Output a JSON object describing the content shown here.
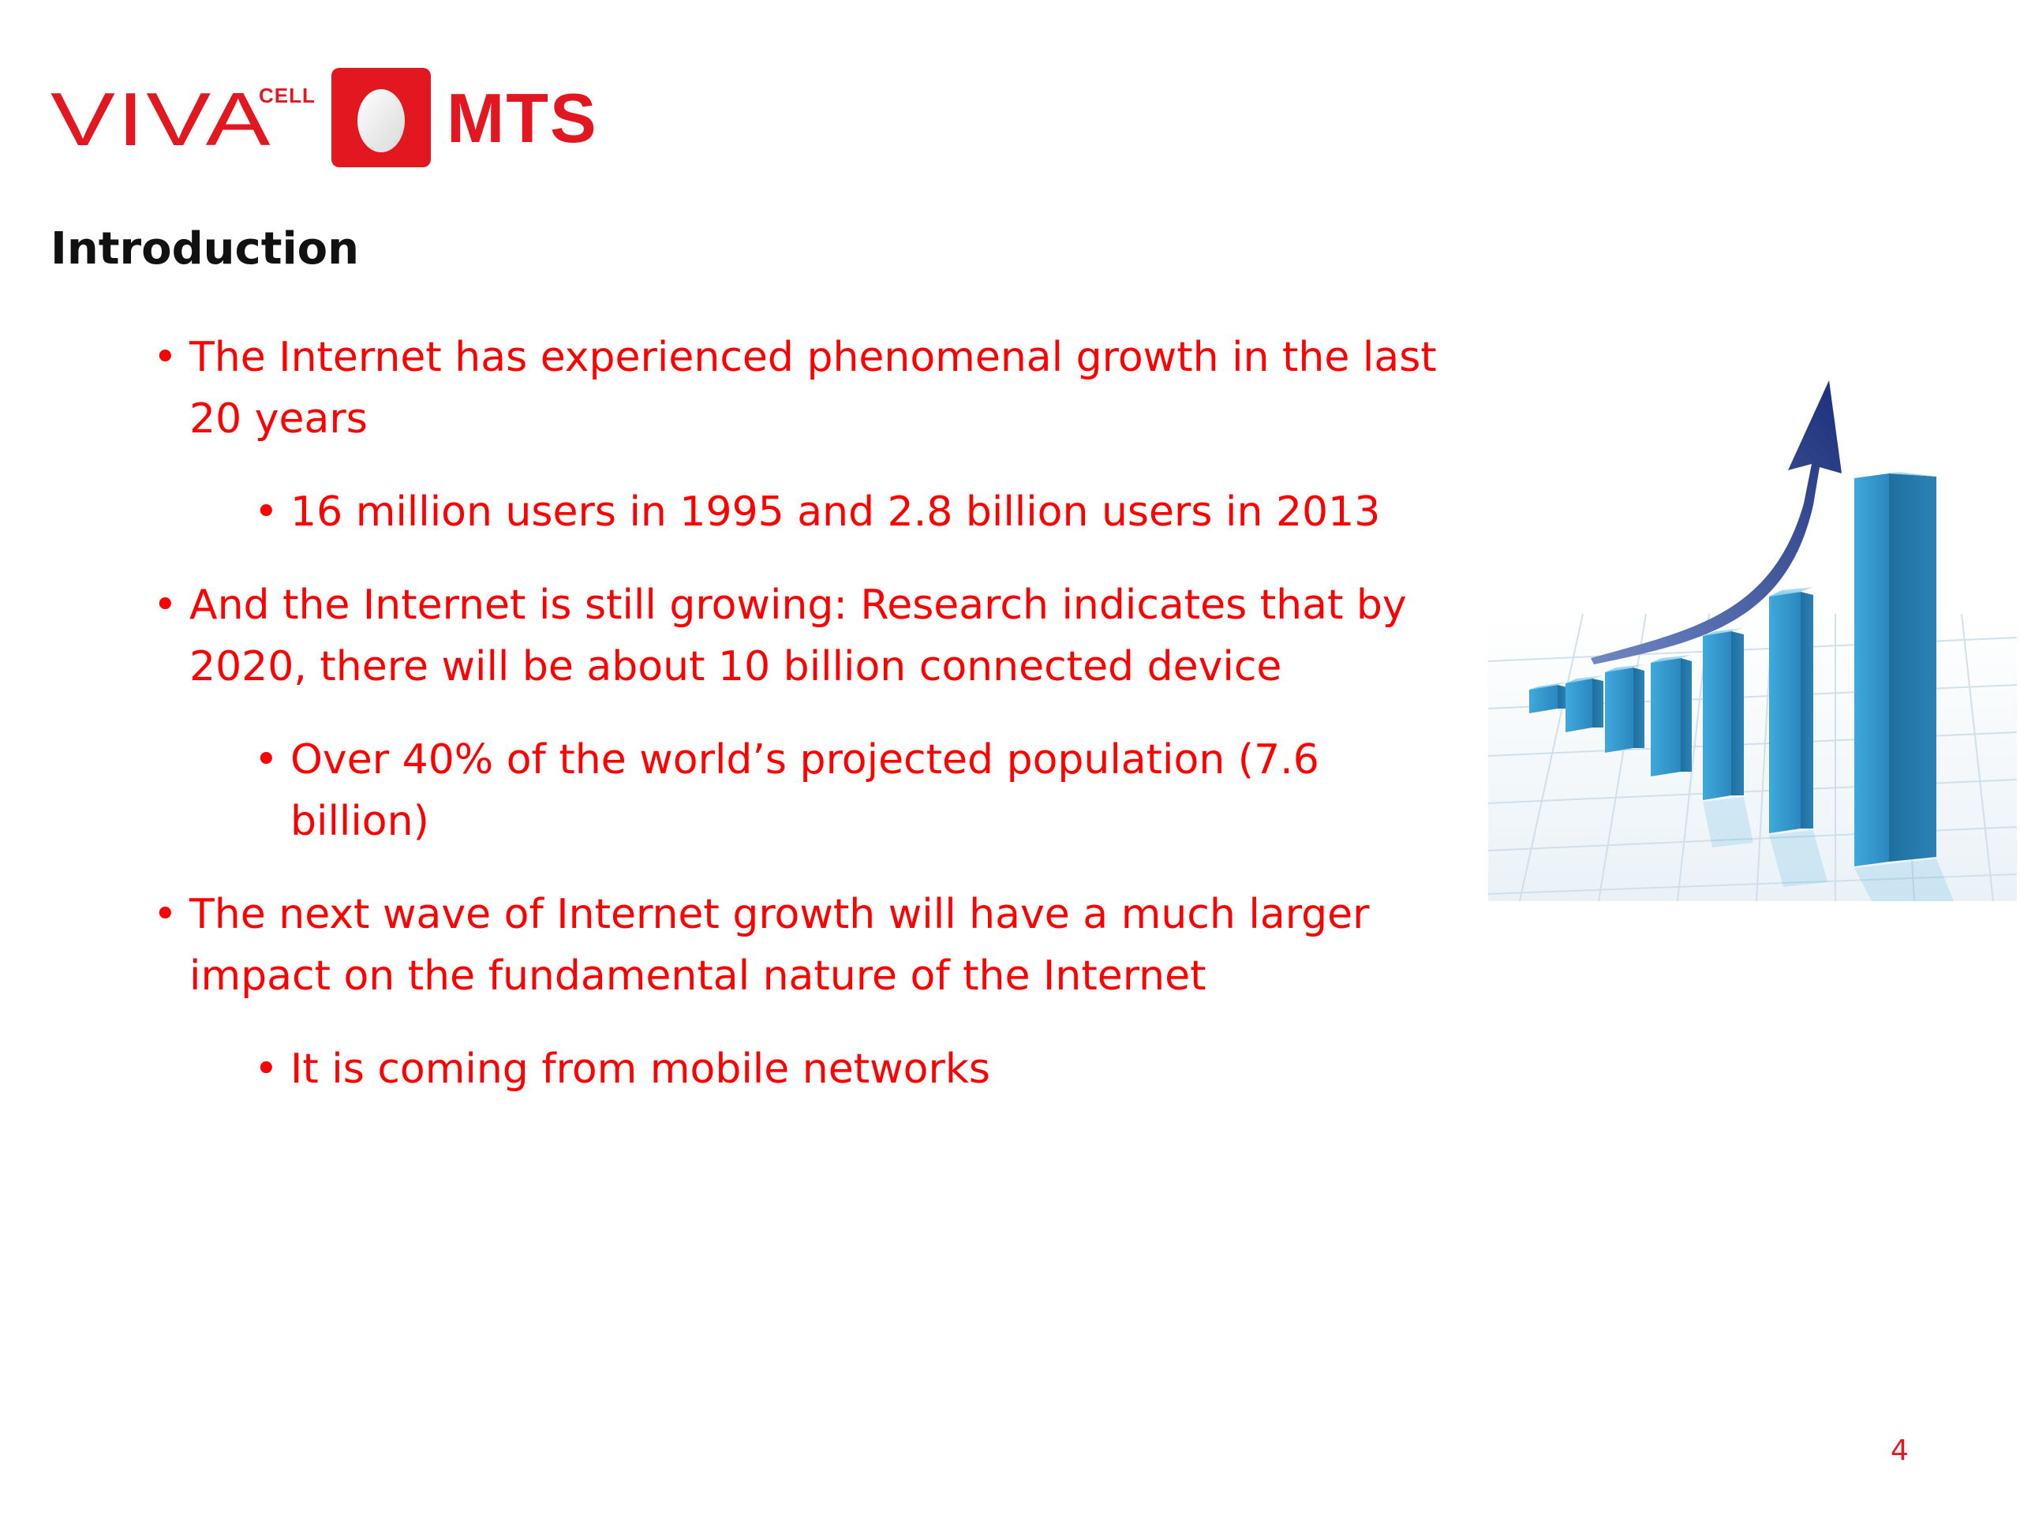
{
  "logo": {
    "viva": "VIVA",
    "cell": "CELL",
    "mts": "MTS",
    "colors": {
      "brand_red": "#e3171f",
      "egg_white": "#ffffff"
    },
    "icon": "mts-egg-logo-icon"
  },
  "heading": "Introduction",
  "bullets": [
    {
      "level": 1,
      "text": "The Internet has experienced phenomenal growth in the last 20 years"
    },
    {
      "level": 2,
      "text": "16 million users in 1995 and 2.8 billion users in 2013"
    },
    {
      "level": 1,
      "text": "And the Internet is still growing: Research indicates that by 2020, there will be about 10 billion connected device"
    },
    {
      "level": 2,
      "text": "Over 40% of the world’s projected population (7.6 billion)"
    },
    {
      "level": 1,
      "text": "The next wave of Internet growth will have a much larger impact on the fundamental nature of the Internet"
    },
    {
      "level": 2,
      "text": "It is coming from mobile networks"
    }
  ],
  "bullet_symbol": "•",
  "bullet_color": "#ff0000",
  "figure": {
    "icon": "rising-bar-chart-with-arrow-illustration",
    "colors": {
      "bar": "#3aa6d8",
      "arrow": "#1f3d8a",
      "grid": "#c9dbe6"
    }
  },
  "page_number": "4"
}
